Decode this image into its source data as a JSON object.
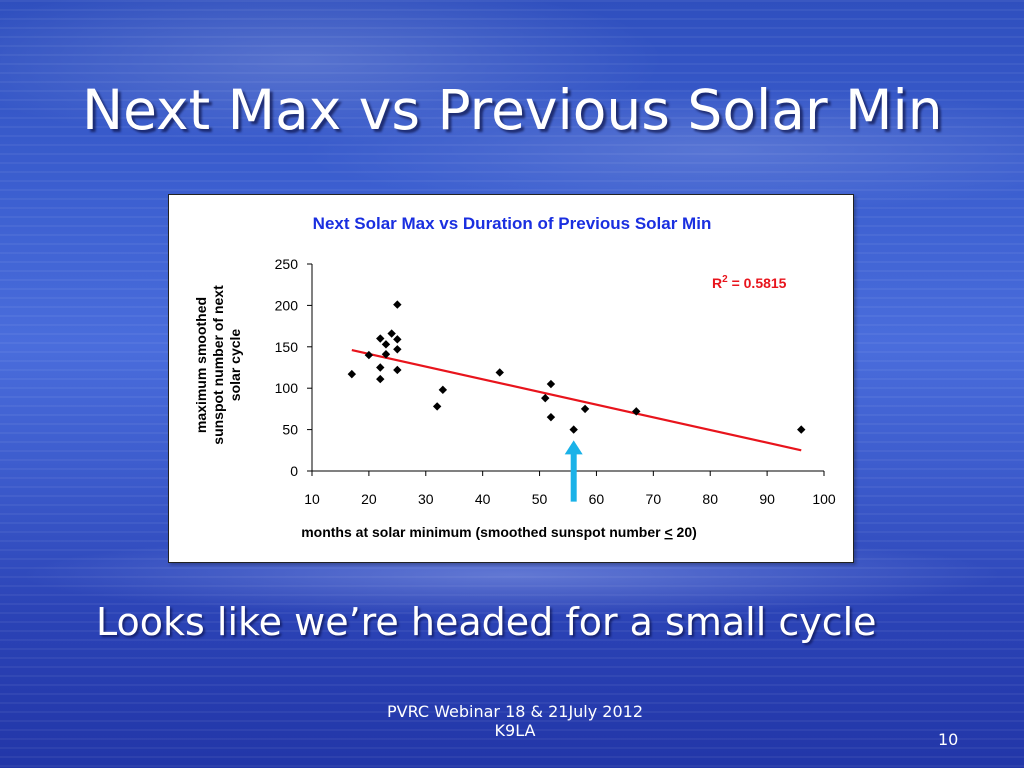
{
  "slide": {
    "title": "Next Max vs Previous Solar Min",
    "subtitle": "Looks like we’re headed for a small cycle",
    "footer_line1": "PVRC Webinar 18 & 21July 2012",
    "footer_line2": "K9LA",
    "slide_number": "10"
  },
  "colors": {
    "chart_title": "#1a2fe0",
    "trendline": "#e8141c",
    "r2_text": "#e8141c",
    "arrow": "#1ab2e8",
    "points": "#000000"
  },
  "chart_data": {
    "type": "scatter",
    "title": "Next Solar Max vs Duration of Previous Solar Min",
    "ylabel_lines": [
      "maximum smoothed",
      "sunspot number of next",
      "solar cycle"
    ],
    "xlabel": "months at solar minimum (smoothed sunspot number < 20)",
    "xlabel_parts": {
      "before": "months at solar minimum (smoothed sunspot number ",
      "underlined": "<",
      "after": " 20)"
    },
    "xlim": [
      10,
      100
    ],
    "ylim": [
      0,
      250
    ],
    "xticks": [
      "10",
      "20",
      "30",
      "40",
      "50",
      "60",
      "70",
      "80",
      "90",
      "100"
    ],
    "yticks": [
      "0",
      "50",
      "100",
      "150",
      "200",
      "250"
    ],
    "points": [
      {
        "x": 17,
        "y": 117
      },
      {
        "x": 20,
        "y": 140
      },
      {
        "x": 22,
        "y": 160
      },
      {
        "x": 22,
        "y": 125
      },
      {
        "x": 22,
        "y": 111
      },
      {
        "x": 23,
        "y": 153
      },
      {
        "x": 23,
        "y": 141
      },
      {
        "x": 24,
        "y": 166
      },
      {
        "x": 25,
        "y": 201
      },
      {
        "x": 25,
        "y": 159
      },
      {
        "x": 25,
        "y": 147
      },
      {
        "x": 25,
        "y": 122
      },
      {
        "x": 32,
        "y": 78
      },
      {
        "x": 33,
        "y": 98
      },
      {
        "x": 43,
        "y": 119
      },
      {
        "x": 51,
        "y": 88
      },
      {
        "x": 52,
        "y": 105
      },
      {
        "x": 52,
        "y": 65
      },
      {
        "x": 56,
        "y": 50
      },
      {
        "x": 58,
        "y": 75
      },
      {
        "x": 67,
        "y": 72
      },
      {
        "x": 96,
        "y": 50
      }
    ],
    "trendline": {
      "type": "linear",
      "x": [
        17,
        96
      ],
      "y": [
        146,
        25
      ]
    },
    "r_squared": {
      "symbol": "R",
      "superscript": "2",
      "text": " = 0.5815"
    },
    "annotation_arrow": {
      "x": 56,
      "y_tail": -37,
      "y_head": 37
    },
    "grid": false,
    "legend": "none"
  }
}
